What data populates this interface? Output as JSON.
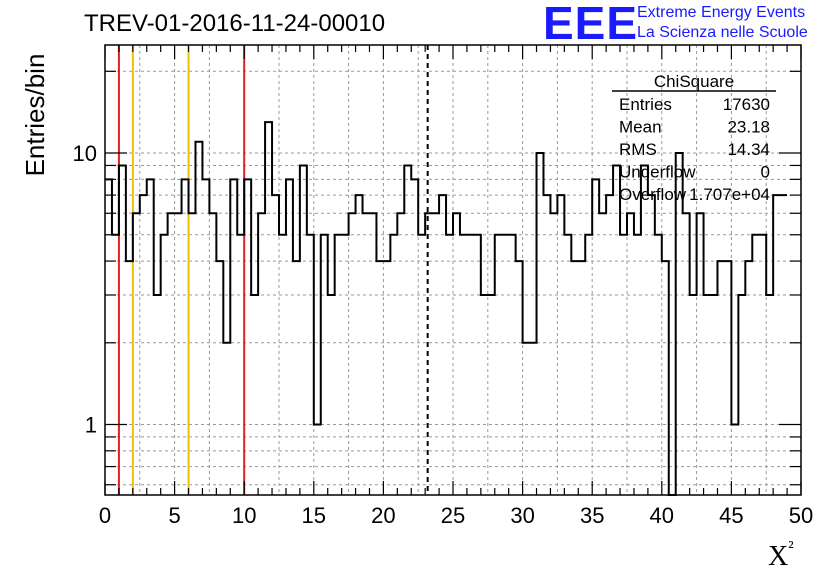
{
  "chart_data": {
    "type": "histogram",
    "title": "TREV-01-2016-11-24-00010",
    "xlabel": "X²",
    "ylabel": "Entries/bin",
    "xlim": [
      0,
      50
    ],
    "ylim": [
      0.55,
      25
    ],
    "log_y": true,
    "grid": true,
    "x_ticks": [
      0,
      5,
      10,
      15,
      20,
      25,
      30,
      35,
      40,
      45,
      50
    ],
    "y_ticks": [
      1,
      10
    ],
    "bin_width": 0.5,
    "values": [
      8,
      5,
      9,
      4,
      6,
      7,
      8,
      3,
      5,
      6,
      6,
      8,
      6,
      11,
      8,
      6,
      4,
      2,
      8,
      5,
      8,
      3,
      6,
      13,
      7,
      5,
      8,
      4,
      9,
      5,
      1,
      5,
      3,
      5,
      5,
      6,
      7,
      6,
      6,
      4,
      4,
      5,
      6,
      9,
      8,
      5,
      6,
      6,
      7,
      5,
      6,
      5,
      5,
      5,
      3,
      3,
      5,
      5,
      5,
      4,
      2,
      2,
      10,
      7,
      6,
      7,
      5,
      4,
      4,
      5,
      8,
      6,
      7,
      9,
      5,
      6,
      5,
      9,
      7,
      5,
      4,
      0,
      10,
      6,
      3,
      6,
      3,
      3,
      4,
      4,
      1,
      3,
      4,
      5,
      5,
      3,
      7,
      7
    ],
    "cut_lines": [
      {
        "x": 1,
        "color": "#e02020"
      },
      {
        "x": 2,
        "color": "#f0c000"
      },
      {
        "x": 6,
        "color": "#f0c000"
      },
      {
        "x": 10,
        "color": "#e02020"
      }
    ],
    "mean_line": {
      "x": 23.18,
      "style": "dashed",
      "color": "#000000"
    },
    "stats_box": {
      "name": "ChiSquare",
      "rows": [
        {
          "label": "Entries",
          "value": "17630"
        },
        {
          "label": "Mean",
          "value": "23.18"
        },
        {
          "label": "RMS",
          "value": "14.34"
        },
        {
          "label": "Underflow",
          "value": "0"
        },
        {
          "label": "Overflow",
          "value": "1.707e+04"
        }
      ]
    }
  },
  "logo": {
    "mark": "EEE",
    "line1": "Extreme Energy Events",
    "line2": "La Scienza nelle Scuole",
    "color": "#1a1aff"
  }
}
